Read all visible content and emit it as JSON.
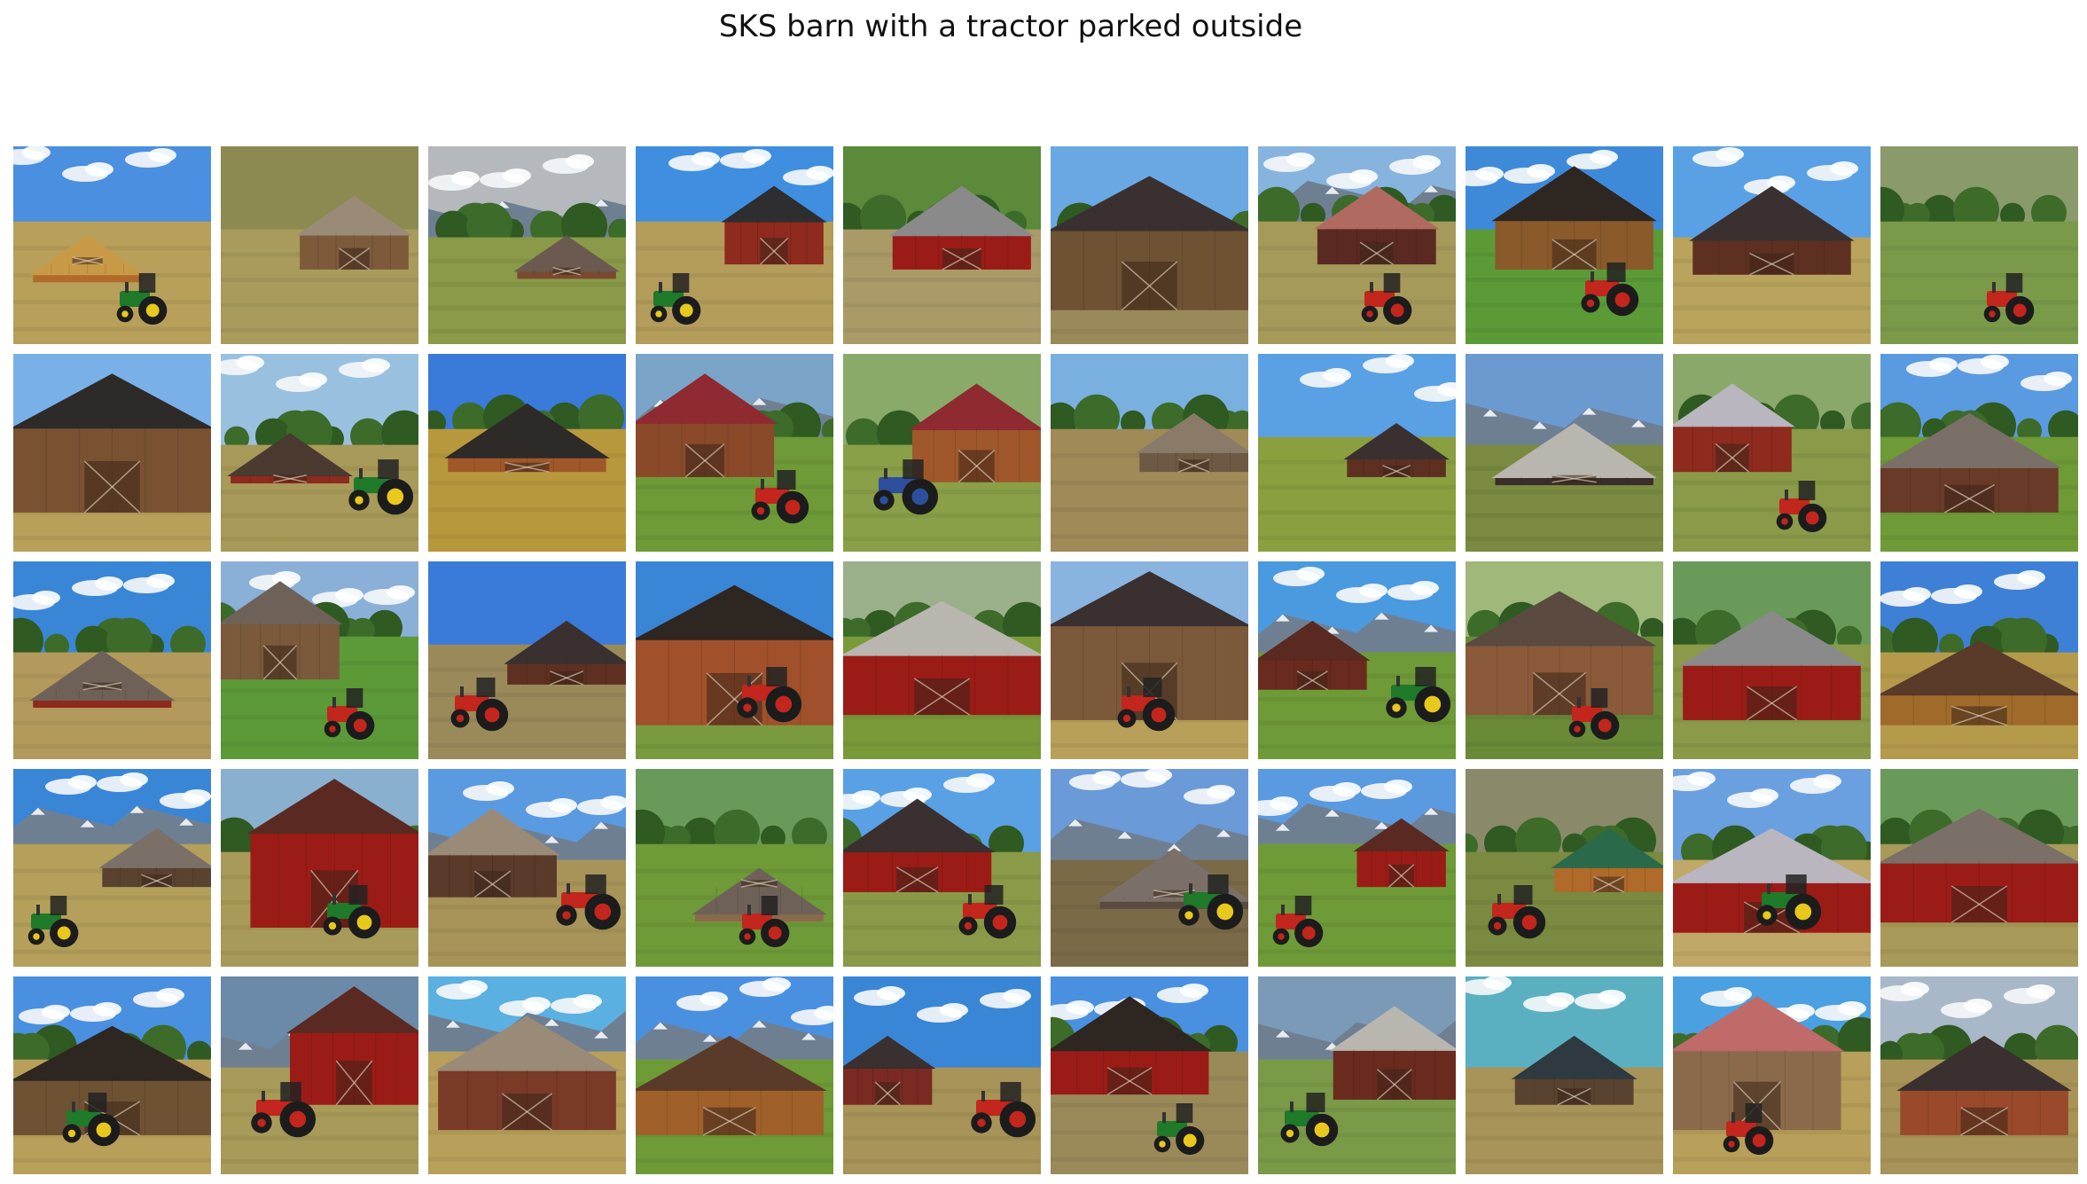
{
  "title": "SKS barn with a tractor parked outside",
  "colors": {
    "barn_red": "#9b1c17",
    "barn_wood": "#8a5a2b",
    "barn_gray": "#6e6258",
    "roof_dark": "#3a3030",
    "roof_light": "#b9b6b0",
    "tractor_green": "#1f7a2a",
    "tractor_red": "#c2261c",
    "tractor_blue": "#2d4f9e",
    "sky_blue": "#3a86d6",
    "grass_green": "#6f9a38",
    "field_tan": "#b99d5c"
  },
  "tiles": [
    {
      "sky": "#4a8fe0",
      "ground": "#b8a05a",
      "barn": "#b06a2a",
      "roof": "#c99a45",
      "tractor": "green",
      "clouds": true,
      "mountains": false,
      "trees": false,
      "bx": 0.1,
      "bw": 0.55,
      "by": 0.45
    },
    {
      "sky": "#8c8a50",
      "ground": "#a89b5c",
      "barn": "#7d5a3a",
      "roof": "#9a8a78",
      "tractor": "none",
      "clouds": false,
      "mountains": false,
      "trees": false,
      "bx": 0.4,
      "bw": 0.55,
      "by": 0.25
    },
    {
      "sky": "#b5b8bd",
      "ground": "#8a9a48",
      "barn": "#7a4a30",
      "roof": "#6a5a50",
      "tractor": "none",
      "clouds": true,
      "mountains": true,
      "trees": true,
      "bx": 0.45,
      "bw": 0.5,
      "by": 0.45
    },
    {
      "sky": "#3f8ee0",
      "ground": "#b49c5a",
      "barn": "#8e2a1e",
      "roof": "#2e2e30",
      "tractor": "green",
      "clouds": true,
      "mountains": false,
      "trees": false,
      "bx": 0.45,
      "bw": 0.5,
      "by": 0.2
    },
    {
      "sky": "#5a8a3a",
      "ground": "#a99a68",
      "barn": "#9b1c17",
      "roof": "#8a8a8a",
      "tractor": "none",
      "clouds": false,
      "mountains": false,
      "trees": true,
      "bx": 0.25,
      "bw": 0.7,
      "by": 0.2
    },
    {
      "sky": "#6aa8e4",
      "ground": "#9a8a5a",
      "barn": "#6e5234",
      "roof": "#3a3030",
      "tractor": "none",
      "clouds": false,
      "mountains": false,
      "trees": true,
      "bx": 0.0,
      "bw": 1.0,
      "by": 0.15
    },
    {
      "sky": "#86b4de",
      "ground": "#a69a5a",
      "barn": "#5a2a22",
      "roof": "#b06a60",
      "tractor": "red",
      "clouds": true,
      "mountains": true,
      "trees": true,
      "bx": 0.3,
      "bw": 0.6,
      "by": 0.2
    },
    {
      "sky": "#3e8ad8",
      "ground": "#5c9a38",
      "barn": "#8a5a2b",
      "roof": "#2e2620",
      "tractor": "red",
      "clouds": true,
      "mountains": false,
      "trees": false,
      "bx": 0.15,
      "bw": 0.8,
      "by": 0.1
    },
    {
      "sky": "#5aa0e4",
      "ground": "#b8a45c",
      "barn": "#5e3022",
      "roof": "#3a3030",
      "tractor": "none",
      "clouds": true,
      "mountains": false,
      "trees": false,
      "bx": 0.1,
      "bw": 0.8,
      "by": 0.2
    },
    {
      "sky": "#8a9a6a",
      "ground": "#7a9a4a",
      "barn": "#4a6a2a",
      "roof": "#4a6a2a",
      "tractor": "red",
      "clouds": false,
      "mountains": false,
      "trees": true,
      "bx": 0.0,
      "bw": 0.0,
      "by": 0.4
    },
    {
      "sky": "#7ab0e8",
      "ground": "#b8a05a",
      "barn": "#7a5232",
      "roof": "#2e2a28",
      "tractor": "none",
      "clouds": false,
      "mountains": false,
      "trees": false,
      "bx": 0.0,
      "bw": 1.0,
      "by": 0.1
    },
    {
      "sky": "#9ac0e0",
      "ground": "#a89a58",
      "barn": "#8e2a1e",
      "roof": "#4a3a30",
      "tractor": "green",
      "clouds": true,
      "mountains": false,
      "trees": true,
      "bx": 0.05,
      "bw": 0.6,
      "by": 0.4
    },
    {
      "sky": "#3a7ad8",
      "ground": "#b8983c",
      "barn": "#a0582a",
      "roof": "#2e2a28",
      "tractor": "none",
      "clouds": false,
      "mountains": false,
      "trees": true,
      "bx": 0.1,
      "bw": 0.8,
      "by": 0.25
    },
    {
      "sky": "#7aa4c8",
      "ground": "#6f9a38",
      "barn": "#8a4a2a",
      "roof": "#8e2a30",
      "tractor": "red",
      "clouds": false,
      "mountains": true,
      "trees": true,
      "bx": 0.0,
      "bw": 0.7,
      "by": 0.1
    },
    {
      "sky": "#8aaa6a",
      "ground": "#8aa048",
      "barn": "#a0582a",
      "roof": "#8e2a30",
      "tractor": "blue",
      "clouds": false,
      "mountains": false,
      "trees": true,
      "bx": 0.35,
      "bw": 0.65,
      "by": 0.15
    },
    {
      "sky": "#7ab0e0",
      "ground": "#a08a58",
      "barn": "#6e5a44",
      "roof": "#8a7a68",
      "tractor": "none",
      "clouds": false,
      "mountains": false,
      "trees": true,
      "bx": 0.45,
      "bw": 0.55,
      "by": 0.3
    },
    {
      "sky": "#5aa0e4",
      "ground": "#8aa040",
      "barn": "#5e3022",
      "roof": "#3a3030",
      "tractor": "none",
      "clouds": true,
      "mountains": false,
      "trees": false,
      "bx": 0.45,
      "bw": 0.5,
      "by": 0.35
    },
    {
      "sky": "#6a9ad0",
      "ground": "#7a8a40",
      "barn": "#3a2e28",
      "roof": "#b9b6b0",
      "tractor": "none",
      "clouds": false,
      "mountains": true,
      "trees": false,
      "bx": 0.15,
      "bw": 0.8,
      "by": 0.35
    },
    {
      "sky": "#8aa86a",
      "ground": "#8a9a48",
      "barn": "#8e2a1e",
      "roof": "#b9b6c0",
      "tractor": "red",
      "clouds": false,
      "mountains": false,
      "trees": true,
      "bx": 0.0,
      "bw": 0.6,
      "by": 0.15
    },
    {
      "sky": "#5a9ae0",
      "ground": "#6f9a38",
      "barn": "#6a3a28",
      "roof": "#7a7068",
      "tractor": "none",
      "clouds": true,
      "mountains": false,
      "trees": true,
      "bx": 0.0,
      "bw": 0.9,
      "by": 0.3
    },
    {
      "sky": "#3a86d6",
      "ground": "#b39a5c",
      "barn": "#8e2a1e",
      "roof": "#6e6258",
      "tractor": "none",
      "clouds": true,
      "mountains": false,
      "trees": true,
      "bx": 0.1,
      "bw": 0.7,
      "by": 0.45
    },
    {
      "sky": "#8ab0d8",
      "ground": "#5c9a38",
      "barn": "#7a5a3a",
      "roof": "#6e6258",
      "tractor": "red",
      "clouds": true,
      "mountains": false,
      "trees": true,
      "bx": 0.0,
      "bw": 0.6,
      "by": 0.1
    },
    {
      "sky": "#3a7ad8",
      "ground": "#9a8a5a",
      "barn": "#5e3022",
      "roof": "#3a3030",
      "tractor": "red",
      "clouds": false,
      "mountains": false,
      "trees": false,
      "bx": 0.4,
      "bw": 0.6,
      "by": 0.3
    },
    {
      "sky": "#3a86d6",
      "ground": "#7a9a40",
      "barn": "#a0502a",
      "roof": "#2e2620",
      "tractor": "red",
      "clouds": false,
      "mountains": false,
      "trees": false,
      "bx": 0.0,
      "bw": 1.0,
      "by": 0.12
    },
    {
      "sky": "#9ab08a",
      "ground": "#7a9a3a",
      "barn": "#9b1c17",
      "roof": "#b9b6b0",
      "tractor": "none",
      "clouds": false,
      "mountains": false,
      "trees": true,
      "bx": 0.0,
      "bw": 1.0,
      "by": 0.2
    },
    {
      "sky": "#8ab4e0",
      "ground": "#b8a05a",
      "barn": "#7a5a3a",
      "roof": "#3a3030",
      "tractor": "red",
      "clouds": false,
      "mountains": false,
      "trees": false,
      "bx": 0.0,
      "bw": 1.0,
      "by": 0.05
    },
    {
      "sky": "#4a9ae0",
      "ground": "#6f9a38",
      "barn": "#6a2a1e",
      "roof": "#5a2a22",
      "tractor": "green",
      "clouds": true,
      "mountains": true,
      "trees": false,
      "bx": 0.0,
      "bw": 0.55,
      "by": 0.3
    },
    {
      "sky": "#a0b87a",
      "ground": "#6a8a38",
      "barn": "#8a5a3a",
      "roof": "#5a4a40",
      "tractor": "red",
      "clouds": false,
      "mountains": false,
      "trees": true,
      "bx": 0.0,
      "bw": 0.95,
      "by": 0.15
    },
    {
      "sky": "#6a9a5a",
      "ground": "#8a9a48",
      "barn": "#9b1c17",
      "roof": "#8a8a8a",
      "tractor": "none",
      "clouds": false,
      "mountains": false,
      "trees": true,
      "bx": 0.05,
      "bw": 0.9,
      "by": 0.25
    },
    {
      "sky": "#3e80d6",
      "ground": "#b59a4c",
      "barn": "#a06a2a",
      "roof": "#5a3a28",
      "tractor": "none",
      "clouds": true,
      "mountains": false,
      "trees": true,
      "bx": 0.0,
      "bw": 1.0,
      "by": 0.4
    },
    {
      "sky": "#3a86d6",
      "ground": "#b4a05a",
      "barn": "#5a4230",
      "roof": "#7a7068",
      "tractor": "green",
      "clouds": true,
      "mountains": true,
      "trees": false,
      "bx": 0.45,
      "bw": 0.55,
      "by": 0.3
    },
    {
      "sky": "#8ab0d0",
      "ground": "#a89a58",
      "barn": "#9b1c17",
      "roof": "#5a2a22",
      "tractor": "green",
      "clouds": false,
      "mountains": false,
      "trees": true,
      "bx": 0.15,
      "bw": 0.85,
      "by": 0.05
    },
    {
      "sky": "#5a9ae0",
      "ground": "#a89458",
      "barn": "#5a3a2a",
      "roof": "#9a8a78",
      "tractor": "red",
      "clouds": true,
      "mountains": true,
      "trees": false,
      "bx": 0.0,
      "bw": 0.65,
      "by": 0.2
    },
    {
      "sky": "#6a9a5a",
      "ground": "#6f9a38",
      "barn": "#8a6a4a",
      "roof": "#6e6258",
      "tractor": "red",
      "clouds": false,
      "mountains": false,
      "trees": true,
      "bx": 0.3,
      "bw": 0.65,
      "by": 0.5
    },
    {
      "sky": "#5aa0e4",
      "ground": "#8a9a48",
      "barn": "#9b1c17",
      "roof": "#3a3030",
      "tractor": "red",
      "clouds": true,
      "mountains": false,
      "trees": true,
      "bx": 0.0,
      "bw": 0.75,
      "by": 0.15
    },
    {
      "sky": "#6a9ad8",
      "ground": "#7a6a48",
      "barn": "#5a4a40",
      "roof": "#7a7068",
      "tractor": "green",
      "clouds": true,
      "mountains": true,
      "trees": false,
      "bx": 0.25,
      "bw": 0.75,
      "by": 0.4
    },
    {
      "sky": "#5a9ae0",
      "ground": "#6f9a38",
      "barn": "#9b1c17",
      "roof": "#5a2a22",
      "tractor": "red",
      "clouds": true,
      "mountains": true,
      "trees": false,
      "bx": 0.5,
      "bw": 0.45,
      "by": 0.25
    },
    {
      "sky": "#8a8a6a",
      "ground": "#7a8a40",
      "barn": "#b06a2a",
      "roof": "#2a6a4a",
      "tractor": "red",
      "clouds": false,
      "mountains": false,
      "trees": true,
      "bx": 0.45,
      "bw": 0.55,
      "by": 0.3
    },
    {
      "sky": "#6aa0e0",
      "ground": "#c0a868",
      "barn": "#9b1c17",
      "roof": "#b9b6c0",
      "tractor": "green",
      "clouds": true,
      "mountains": false,
      "trees": true,
      "bx": 0.0,
      "bw": 1.0,
      "by": 0.3
    },
    {
      "sky": "#6a9a5a",
      "ground": "#a89a58",
      "barn": "#9b1c17",
      "roof": "#7a7068",
      "tractor": "none",
      "clouds": false,
      "mountains": false,
      "trees": true,
      "bx": 0.0,
      "bw": 1.0,
      "by": 0.2
    },
    {
      "sky": "#4a90e0",
      "ground": "#b8a05a",
      "barn": "#6e5234",
      "roof": "#2e2620",
      "tractor": "green",
      "clouds": true,
      "mountains": false,
      "trees": true,
      "bx": 0.0,
      "bw": 1.0,
      "by": 0.25
    },
    {
      "sky": "#6a8aa8",
      "ground": "#a89a58",
      "barn": "#9b1c17",
      "roof": "#5a2a22",
      "tractor": "red",
      "clouds": false,
      "mountains": true,
      "trees": false,
      "bx": 0.35,
      "bw": 0.65,
      "by": 0.05
    },
    {
      "sky": "#5ab0e0",
      "ground": "#b8a05a",
      "barn": "#7a3a28",
      "roof": "#9a8a78",
      "tractor": "none",
      "clouds": true,
      "mountains": true,
      "trees": false,
      "bx": 0.05,
      "bw": 0.9,
      "by": 0.2
    },
    {
      "sky": "#4a90e0",
      "ground": "#6f9a38",
      "barn": "#a0602a",
      "roof": "#5a3a28",
      "tractor": "none",
      "clouds": true,
      "mountains": true,
      "trees": false,
      "bx": 0.0,
      "bw": 0.95,
      "by": 0.3
    },
    {
      "sky": "#3a86d6",
      "ground": "#a89458",
      "barn": "#7a2a22",
      "roof": "#3a3030",
      "tractor": "red",
      "clouds": true,
      "mountains": false,
      "trees": false,
      "bx": 0.0,
      "bw": 0.45,
      "by": 0.3
    },
    {
      "sky": "#4a90e0",
      "ground": "#9a8a5a",
      "barn": "#9b1c17",
      "roof": "#2e2620",
      "tractor": "green",
      "clouds": true,
      "mountains": false,
      "trees": true,
      "bx": 0.0,
      "bw": 0.8,
      "by": 0.1
    },
    {
      "sky": "#7a9ab8",
      "ground": "#7a9a48",
      "barn": "#6a2a1e",
      "roof": "#b9b6b0",
      "tractor": "green",
      "clouds": false,
      "mountains": true,
      "trees": false,
      "bx": 0.38,
      "bw": 0.62,
      "by": 0.15
    },
    {
      "sky": "#5ab0c0",
      "ground": "#a89458",
      "barn": "#5a4230",
      "roof": "#2e3a40",
      "tractor": "none",
      "clouds": true,
      "mountains": false,
      "trees": false,
      "bx": 0.25,
      "bw": 0.6,
      "by": 0.3
    },
    {
      "sky": "#4aa0e0",
      "ground": "#b8a05a",
      "barn": "#8a6a4a",
      "roof": "#c06a6a",
      "tractor": "red",
      "clouds": true,
      "mountains": false,
      "trees": true,
      "bx": 0.0,
      "bw": 0.85,
      "by": 0.1
    },
    {
      "sky": "#a8b8c8",
      "ground": "#a89458",
      "barn": "#9a4a2a",
      "roof": "#3a3030",
      "tractor": "none",
      "clouds": true,
      "mountains": false,
      "trees": true,
      "bx": 0.1,
      "bw": 0.85,
      "by": 0.3
    }
  ]
}
